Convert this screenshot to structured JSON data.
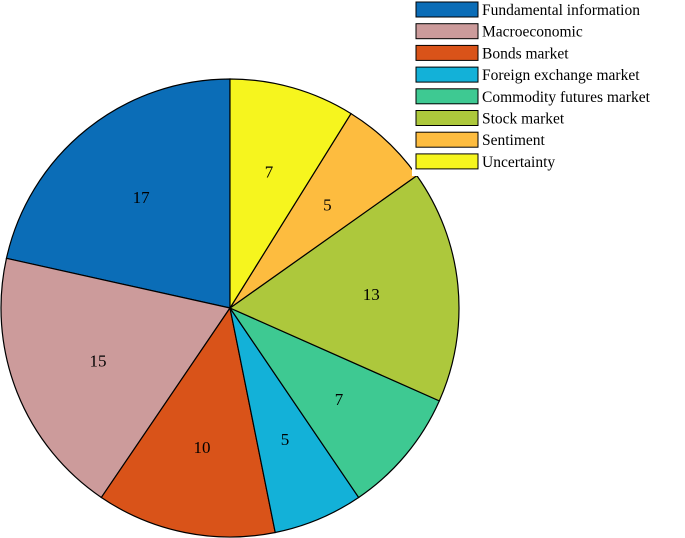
{
  "chart_data": {
    "type": "pie",
    "title": "",
    "legend_position": "top-right",
    "slices": [
      {
        "label": "Fundamental information",
        "value": 17,
        "color": "#0b6db7"
      },
      {
        "label": "Macroeconomic",
        "value": 15,
        "color": "#cc9b9b"
      },
      {
        "label": "Bonds market",
        "value": 10,
        "color": "#d95319"
      },
      {
        "label": "Foreign exchange market",
        "value": 5,
        "color": "#13b1d8"
      },
      {
        "label": "Commodity futures market",
        "value": 7,
        "color": "#3ec992"
      },
      {
        "label": "Stock market",
        "value": 13,
        "color": "#adc83c"
      },
      {
        "label": "Sentiment",
        "value": 5,
        "color": "#fdbc3f"
      },
      {
        "label": "Uncertainty",
        "value": 7,
        "color": "#f6f51e"
      }
    ]
  }
}
